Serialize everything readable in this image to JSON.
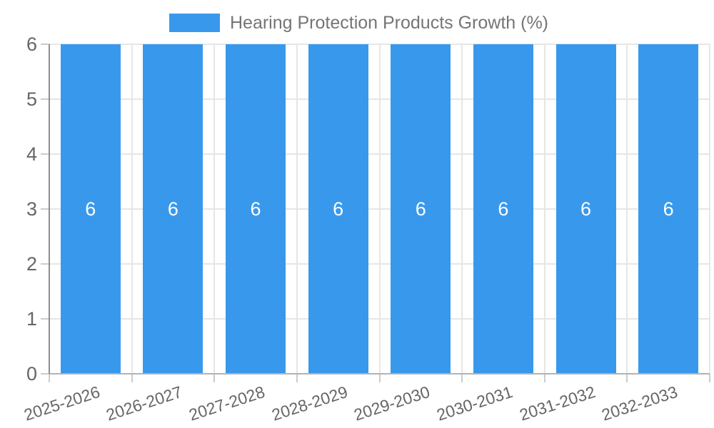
{
  "legend": {
    "label": "Hearing Protection Products Growth (%)"
  },
  "chart_data": {
    "type": "bar",
    "title": "Hearing Protection Products Growth (%)",
    "categories": [
      "2025-2026",
      "2026-2027",
      "2027-2028",
      "2028-2029",
      "2029-2030",
      "2030-2031",
      "2031-2032",
      "2032-2033"
    ],
    "values": [
      6,
      6,
      6,
      6,
      6,
      6,
      6,
      6
    ],
    "bar_labels": [
      "6",
      "6",
      "6",
      "6",
      "6",
      "6",
      "6",
      "6"
    ],
    "xlabel": "",
    "ylabel": "",
    "ylim": [
      0,
      6
    ],
    "yticks": [
      0,
      1,
      2,
      3,
      4,
      5,
      6
    ],
    "grid": true,
    "legend_position": "top",
    "colors": {
      "bar": "#3899EC",
      "bar_label": "#FFFFFF",
      "axis_text": "#666666",
      "legend_text": "#757575",
      "gridline": "#E6E6E6",
      "baseline": "#B3B3B3",
      "axis_line": "#8E8E8E",
      "tick": "#CCCCCC",
      "background": "#FFFFFF"
    }
  }
}
